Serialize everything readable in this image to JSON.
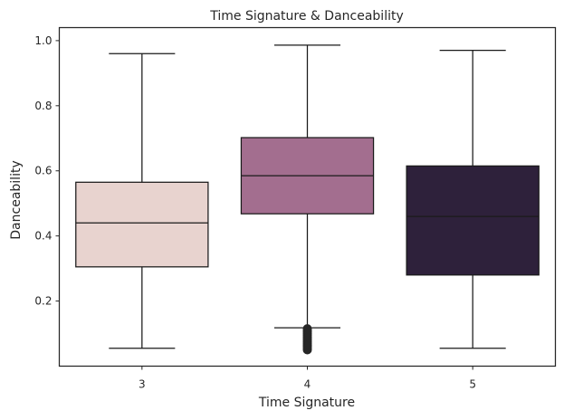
{
  "chart_data": {
    "type": "box",
    "title": "Time Signature & Danceability",
    "xlabel": "Time Signature",
    "ylabel": "Danceability",
    "categories": [
      "3",
      "4",
      "5"
    ],
    "ylim": [
      0.0,
      1.04
    ],
    "yticks": [
      0.2,
      0.4,
      0.6,
      0.8,
      1.0
    ],
    "ytick_labels": [
      "0.2",
      "0.4",
      "0.6",
      "0.8",
      "1.0"
    ],
    "grid": false,
    "boxes": [
      {
        "category": "3",
        "whisker_low": 0.055,
        "q1": 0.305,
        "median": 0.44,
        "q3": 0.565,
        "whisker_high": 0.96,
        "color": "#e8d3cf",
        "outliers": []
      },
      {
        "category": "4",
        "whisker_low": 0.118,
        "q1": 0.468,
        "median": 0.585,
        "q3": 0.702,
        "whisker_high": 0.986,
        "color": "#a36e8f",
        "outliers": [
          0.05,
          0.055,
          0.06,
          0.065,
          0.07,
          0.075,
          0.08,
          0.085,
          0.09,
          0.095,
          0.1,
          0.105,
          0.11,
          0.115
        ]
      },
      {
        "category": "5",
        "whisker_low": 0.055,
        "q1": 0.28,
        "median": 0.46,
        "q3": 0.615,
        "whisker_high": 0.97,
        "color": "#2e213b",
        "outliers": []
      }
    ]
  }
}
